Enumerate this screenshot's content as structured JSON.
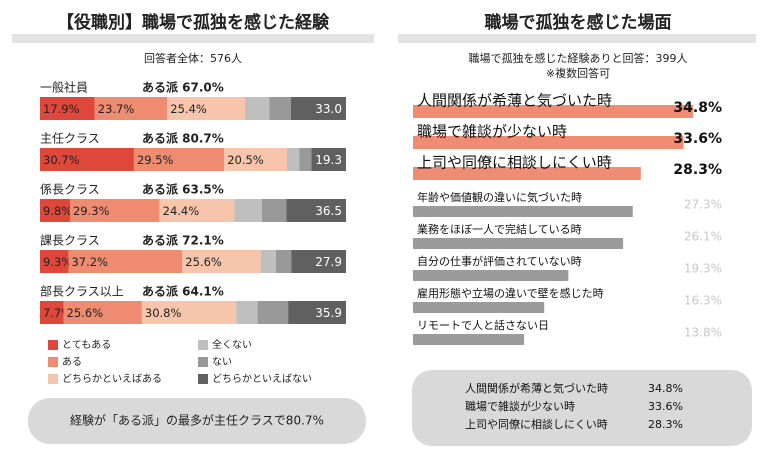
{
  "chart_data": [
    {
      "type": "stacked-bar",
      "title": "【役職別】職場で孤独を感じた経験",
      "subtitle": "回答者全体：576人",
      "categories": [
        "一般社員",
        "主任クラス",
        "係長クラス",
        "課長クラス",
        "部長クラス以上"
      ],
      "summary_labels": [
        "ある派 67.0%",
        "ある派 80.7%",
        "ある派 63.5%",
        "ある派 72.1%",
        "ある派 64.1%"
      ],
      "nai_ha_labels": [
        "33.0",
        "19.3",
        "36.5",
        "27.9",
        "35.9"
      ],
      "xlim": [
        0,
        100
      ],
      "series": [
        {
          "name": "とてもある",
          "color": "#e0473b",
          "values": [
            17.9,
            30.7,
            9.8,
            9.3,
            7.7
          ],
          "value_labels": [
            "17.9%",
            "30.7%",
            "9.8%",
            "9.3%",
            "7.7%"
          ]
        },
        {
          "name": "ある",
          "color": "#ee8b70",
          "values": [
            23.7,
            29.5,
            29.3,
            37.2,
            25.6
          ],
          "value_labels": [
            "23.7%",
            "29.5%",
            "29.3%",
            "37.2%",
            "25.6%"
          ]
        },
        {
          "name": "どちらかといえばある",
          "color": "#f7c5ab",
          "values": [
            25.4,
            20.5,
            24.4,
            25.6,
            30.8
          ],
          "value_labels": [
            "25.4%",
            "20.5%",
            "24.4%",
            "25.6%",
            "30.8%"
          ]
        },
        {
          "name": "全くない",
          "color": "#bfbfbf",
          "values": [
            8,
            4,
            9,
            5,
            7
          ],
          "value_labels": [
            null,
            null,
            null,
            null,
            null
          ]
        },
        {
          "name": "ない",
          "color": "#999999",
          "values": [
            7,
            4,
            8,
            5,
            10
          ],
          "value_labels": [
            null,
            null,
            null,
            null,
            null
          ]
        },
        {
          "name": "どちらかといえばない",
          "color": "#606060",
          "values": [
            18,
            11.3,
            19.5,
            17.9,
            18.9
          ],
          "value_labels": [
            null,
            null,
            null,
            null,
            null
          ]
        }
      ],
      "note": "経験が「ある派」の最多が主任クラスで80.7%"
    },
    {
      "type": "hbar",
      "title": "職場で孤独を感じた場面",
      "subtitle": [
        "職場で孤独を感じた経験ありと回答：399人",
        "※複数回答可"
      ],
      "categories": [
        "人間関係が希薄と気づいた時",
        "職場で雑談が少ない時",
        "上司や同僚に相談しにくい時",
        "年齢や価値観の違いに気づいた時",
        "業務をほぼ一人で完結している時",
        "自分の仕事が評価されていない時",
        "雇用形態や立場の違いで壁を感じた時",
        "リモートで人と話さない日"
      ],
      "values": [
        34.8,
        33.6,
        28.3,
        27.3,
        26.1,
        19.3,
        16.3,
        13.8
      ],
      "value_labels": [
        "34.8%",
        "33.6%",
        "28.3%",
        "27.3%",
        "26.1%",
        "19.3%",
        "16.3%",
        "13.8%"
      ],
      "colors": [
        "#ef8c72",
        "#ef8c72",
        "#ef8c72",
        "#9b9b9b",
        "#9b9b9b",
        "#9b9b9b",
        "#9b9b9b",
        "#9b9b9b"
      ],
      "xlim": [
        0,
        40
      ],
      "summary": [
        [
          "人間関係が希薄と気づいた時",
          "34.8%"
        ],
        [
          "職場で雑談が少ない時",
          "33.6%"
        ],
        [
          "上司や同僚に相談しにくい時",
          "28.3%"
        ]
      ]
    }
  ]
}
